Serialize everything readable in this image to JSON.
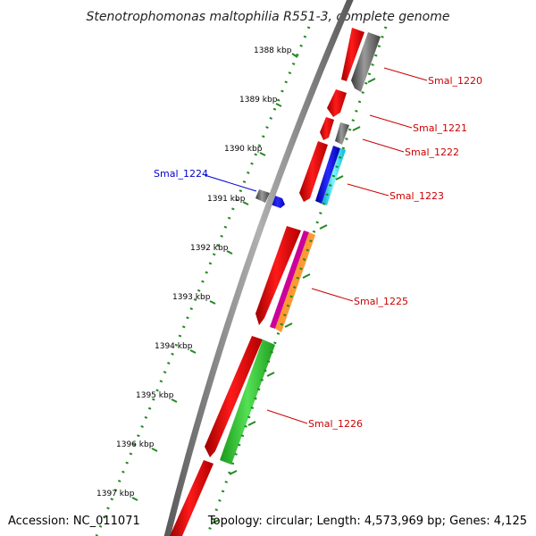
{
  "title": "Stenotrophomonas maltophilia R551-3, complete genome",
  "accession": "Accession: NC_011071",
  "topology": "Topology: circular; Length: 4,573,969 bp; Genes: 4,125",
  "colors": {
    "red": "#ff0000",
    "gray": "#6e6e6e",
    "blue": "#0000ff",
    "cyan": "#00e5ff",
    "green": "#33cc33",
    "magenta": "#cc0099",
    "orange": "#ff9933",
    "scale_dots": "#228822",
    "backbone": "#808080",
    "label_red": "#cc0000",
    "label_blue": "#0000cc"
  },
  "scale_ticks": [
    "1388 kbp",
    "1389 kbp",
    "1390 kbp",
    "1391 kbp",
    "1392 kbp",
    "1393 kbp",
    "1394 kbp",
    "1395 kbp",
    "1396 kbp",
    "1397 kbp"
  ],
  "gene_labels": [
    "Smal_1220",
    "Smal_1221",
    "Smal_1222",
    "Smal_1223",
    "Smal_1224",
    "Smal_1225",
    "Smal_1226"
  ]
}
